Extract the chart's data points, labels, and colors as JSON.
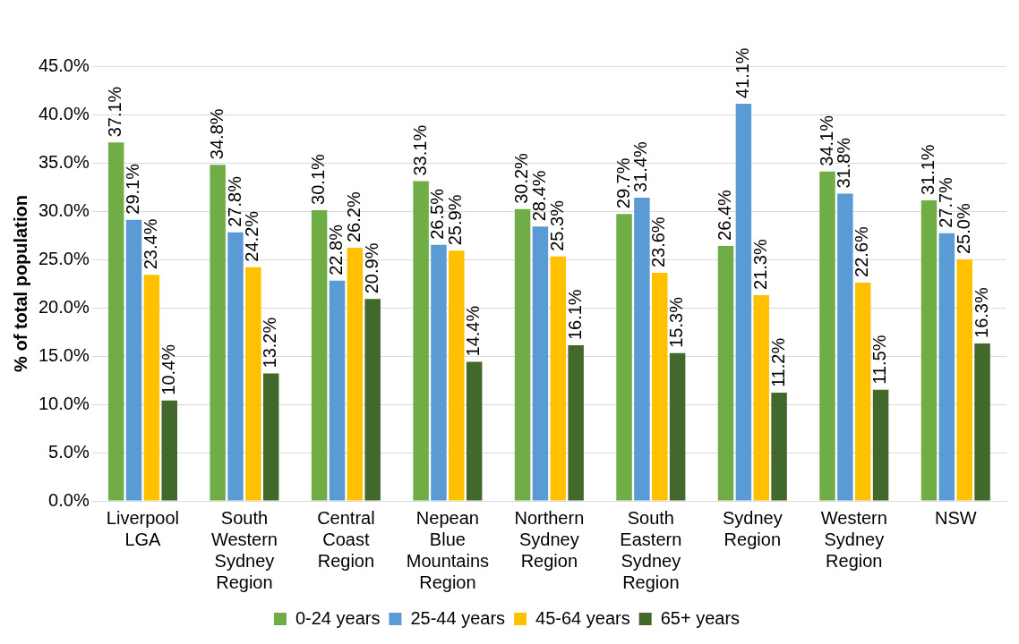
{
  "chart_data": {
    "type": "bar",
    "ylabel": "% of total population",
    "categories": [
      "Liverpool LGA",
      "South Western Sydney Region",
      "Central Coast Region",
      "Nepean Blue Mountains Region",
      "Northern Sydney Region",
      "South Eastern Sydney Region",
      "Sydney Region",
      "Western Sydney Region",
      "NSW"
    ],
    "series": [
      {
        "name": "0-24 years",
        "color": "#70ad47",
        "values": [
          37.1,
          34.8,
          30.1,
          33.1,
          30.2,
          29.7,
          26.4,
          34.1,
          31.1
        ],
        "value_labels": [
          "37.1%",
          "34.8%",
          "30.1%",
          "33.1%",
          "30.2%",
          "29.7%",
          "26.4%",
          "34.1%",
          "31.1%"
        ]
      },
      {
        "name": "25-44 years",
        "color": "#5b9bd5",
        "values": [
          29.1,
          27.8,
          22.8,
          26.5,
          28.4,
          31.4,
          41.1,
          31.8,
          27.7
        ],
        "value_labels": [
          "29.1%",
          "27.8%",
          "22.8%",
          "26.5%",
          "28.4%",
          "31.4%",
          "41.1%",
          "31.8%",
          "27.7%"
        ]
      },
      {
        "name": "45-64 years",
        "color": "#ffc000",
        "values": [
          23.4,
          24.2,
          26.2,
          25.9,
          25.3,
          23.6,
          21.3,
          22.6,
          25.0
        ],
        "value_labels": [
          "23.4%",
          "24.2%",
          "26.2%",
          "25.9%",
          "25.3%",
          "23.6%",
          "21.3%",
          "22.6%",
          "25.0%"
        ]
      },
      {
        "name": "65+ years",
        "color": "#43682b",
        "values": [
          10.4,
          13.2,
          20.9,
          14.4,
          16.1,
          15.3,
          11.2,
          11.5,
          16.3
        ],
        "value_labels": [
          "10.4%",
          "13.2%",
          "20.9%",
          "14.4%",
          "16.1%",
          "15.3%",
          "11.2%",
          "11.5%",
          "16.3%"
        ]
      }
    ],
    "ylim": [
      0,
      45
    ],
    "yticks": [
      {
        "value": 0,
        "label": "0.0%"
      },
      {
        "value": 5,
        "label": "5.0%"
      },
      {
        "value": 10,
        "label": "10.0%"
      },
      {
        "value": 15,
        "label": "15.0%"
      },
      {
        "value": 20,
        "label": "20.0%"
      },
      {
        "value": 25,
        "label": "25.0%"
      },
      {
        "value": 30,
        "label": "30.0%"
      },
      {
        "value": 35,
        "label": "35.0%"
      },
      {
        "value": 40,
        "label": "40.0%"
      },
      {
        "value": 45,
        "label": "45.0%"
      }
    ],
    "grid": "y",
    "legend": "bottom"
  }
}
